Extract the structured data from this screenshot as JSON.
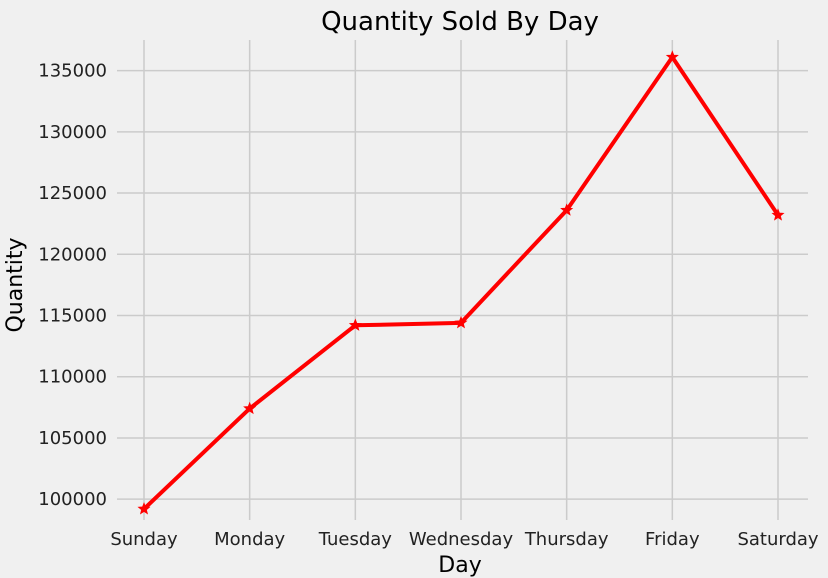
{
  "chart_data": {
    "type": "line",
    "title": "Quantity Sold By Day",
    "xlabel": "Day",
    "ylabel": "Quantity",
    "categories": [
      "Sunday",
      "Monday",
      "Tuesday",
      "Wednesday",
      "Thursday",
      "Friday",
      "Saturday"
    ],
    "series": [
      {
        "values": [
          99200,
          107400,
          114200,
          114400,
          123600,
          136100,
          123200
        ],
        "color": "#ff0000",
        "marker": "star"
      }
    ],
    "ylim": [
      98300,
      137500
    ],
    "yticks": [
      100000,
      105000,
      110000,
      115000,
      120000,
      125000,
      130000,
      135000
    ],
    "ytick_labels": [
      "100000",
      "105000",
      "110000",
      "115000",
      "120000",
      "125000",
      "130000",
      "135000"
    ],
    "grid": true,
    "colors": {
      "background": "#f0f0f0",
      "grid": "#cbcbcb",
      "text": "#222222"
    }
  }
}
